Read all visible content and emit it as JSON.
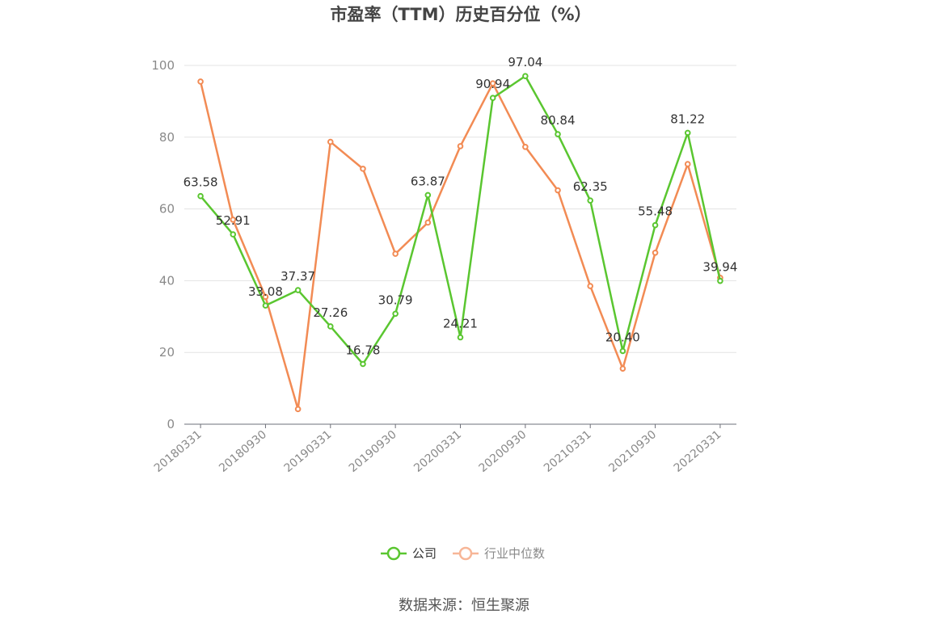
{
  "chart_data": {
    "type": "line",
    "title": "市盈率（TTM）历史百分位（%）",
    "source": "数据来源：恒生聚源",
    "ylim": [
      0,
      100
    ],
    "y_ticks": [
      0,
      20,
      40,
      60,
      80,
      100
    ],
    "grid": true,
    "legend_position": "bottom",
    "x": [
      "20180331",
      "20180630",
      "20180930",
      "20181231",
      "20190331",
      "20190630",
      "20190930",
      "20191231",
      "20200331",
      "20200630",
      "20200930",
      "20201231",
      "20210331",
      "20210630",
      "20210930",
      "20211231",
      "20220331"
    ],
    "x_tick_labels": [
      "20180331",
      "20180930",
      "20190331",
      "20190930",
      "20200331",
      "20200930",
      "20210331",
      "20210930",
      "20220331"
    ],
    "series": [
      {
        "name": "公司",
        "color": "#5ac630",
        "values": [
          63.58,
          52.91,
          33.08,
          37.37,
          27.26,
          16.78,
          30.79,
          63.87,
          24.21,
          90.94,
          97.04,
          80.84,
          62.35,
          20.4,
          55.48,
          81.22,
          39.94
        ],
        "labels": [
          "63.58",
          "52.91",
          "33.08",
          "37.37",
          "27.26",
          "16.78",
          "30.79",
          "63.87",
          "24.21",
          "90.94",
          "97.04",
          "80.84",
          "62.35",
          "20.40",
          "55.48",
          "81.22",
          "39.94"
        ]
      },
      {
        "name": "行业中位数",
        "color": "#f28b54",
        "values": [
          95.5,
          57.0,
          35.5,
          4.2,
          78.7,
          71.2,
          47.5,
          56.2,
          77.5,
          95.0,
          77.3,
          65.2,
          38.5,
          15.5,
          47.8,
          72.5,
          40.8
        ]
      }
    ]
  }
}
